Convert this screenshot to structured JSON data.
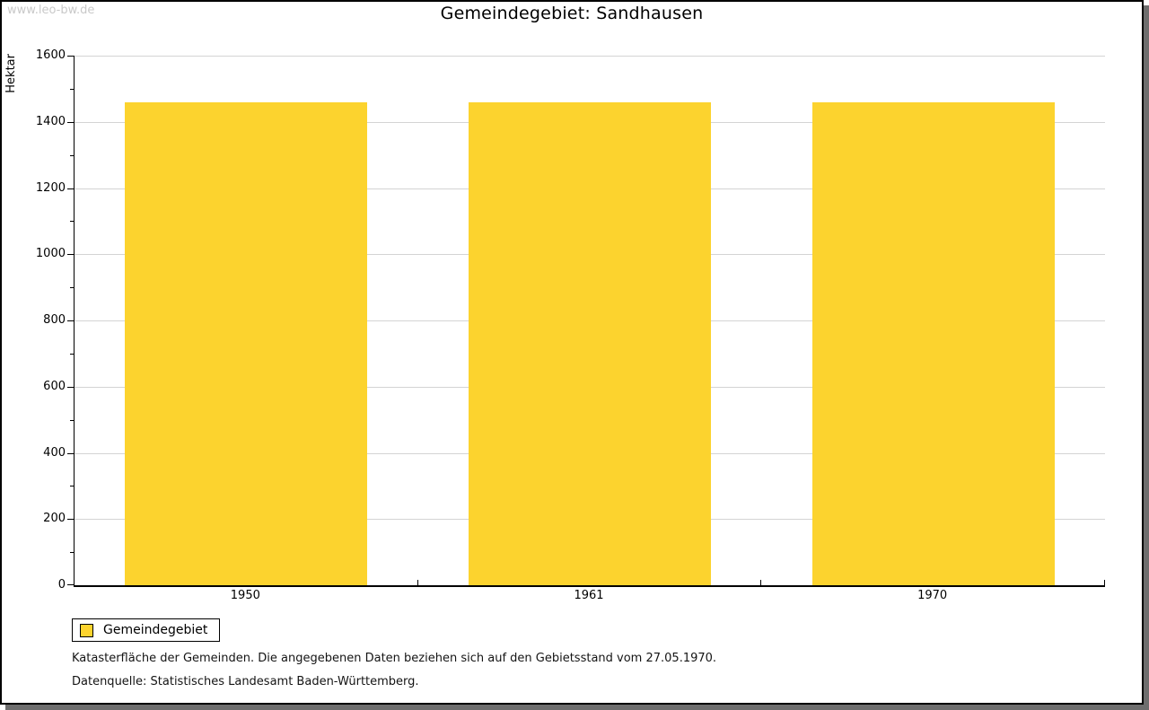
{
  "watermark": "www.leo-bw.de",
  "title": "Gemeindegebiet: Sandhausen",
  "legend": {
    "label": "Gemeindegebiet",
    "swatch_color": "#fcd32e"
  },
  "footer": {
    "line1": "Katasterfläche der Gemeinden. Die angegebenen Daten beziehen sich auf den Gebietsstand vom 27.05.1970.",
    "line2": "Datenquelle: Statistisches Landesamt Baden-Württemberg."
  },
  "colors": {
    "bar": "#fcd32e",
    "grid": "#d4d4d4",
    "axis": "#000000",
    "watermark": "#c9c9c9",
    "frame_shadow": "#6e6e6e"
  },
  "chart_data": {
    "type": "bar",
    "title": "Gemeindegebiet: Sandhausen",
    "categories": [
      "1950",
      "1961",
      "1970"
    ],
    "series": [
      {
        "name": "Gemeindegebiet",
        "values": [
          1460,
          1458,
          1458
        ]
      }
    ],
    "xlabel": "",
    "ylabel": "Hektar",
    "ylim": [
      0,
      1600
    ],
    "ytick_step": 200,
    "ytick_minor_step": 100,
    "unit": "Hektar",
    "grid": true,
    "legend_position": "bottom-left"
  }
}
